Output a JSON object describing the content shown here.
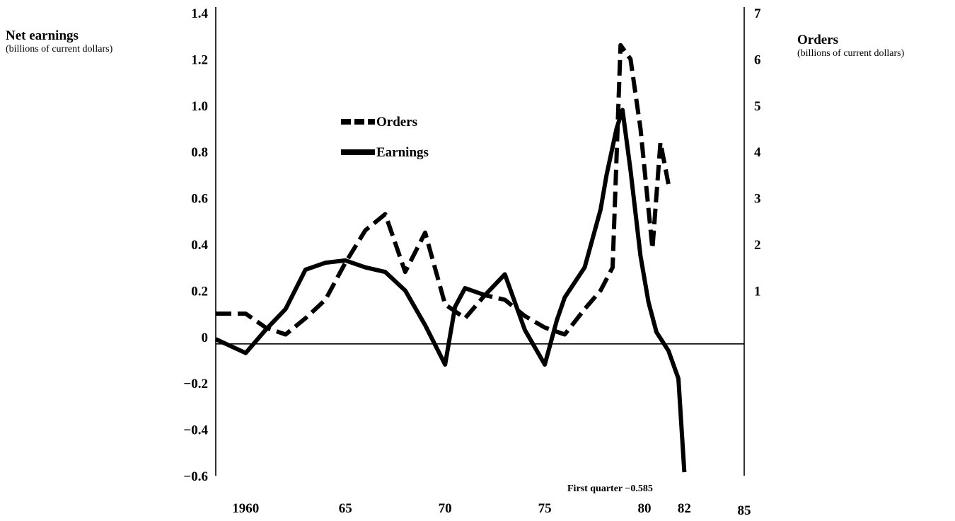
{
  "chart_data": {
    "type": "line",
    "left_axis": {
      "label": "Net earnings",
      "sublabel": "(billions of current dollars)",
      "ylim": [
        -0.6,
        1.4
      ],
      "ticks": [
        "1.4",
        "1.2",
        "1.0",
        "0.8",
        "0.6",
        "0.4",
        "0.2",
        "0",
        "−0.2",
        "−0.4",
        "−0.6"
      ],
      "tick_values": [
        1.4,
        1.2,
        1.0,
        0.8,
        0.6,
        0.4,
        0.2,
        0,
        -0.2,
        -0.4,
        -0.6
      ]
    },
    "right_axis": {
      "label": "Orders",
      "sublabel": "(billions of current dollars)",
      "ylim": [
        -3,
        7
      ],
      "ticks": [
        "7",
        "6",
        "5",
        "4",
        "3",
        "2",
        "1"
      ],
      "tick_values": [
        7,
        6,
        5,
        4,
        3,
        2,
        1
      ]
    },
    "x_axis": {
      "xlim": [
        1958.5,
        1985
      ],
      "ticks": [
        "1960",
        "65",
        "70",
        "75",
        "80",
        "82",
        "85"
      ],
      "tick_values": [
        1960,
        1965,
        1970,
        1975,
        1980,
        1982,
        1985
      ]
    },
    "legend": {
      "placement": "upper-center",
      "orders": "Orders",
      "earnings": "Earnings"
    },
    "series": [
      {
        "name": "Orders",
        "axis": "right",
        "style": "dashed",
        "x": [
          1958.5,
          1960,
          1961,
          1962,
          1963,
          1964,
          1965,
          1966,
          1967,
          1968,
          1969,
          1970,
          1971,
          1972,
          1973,
          1974,
          1975,
          1976,
          1977,
          1977.8,
          1978.4,
          1978.8,
          1979.3,
          1979.8,
          1980.4,
          1980.8,
          1981.2
        ],
        "values": [
          0.5,
          0.5,
          0.2,
          0.05,
          0.4,
          0.8,
          1.6,
          2.3,
          2.65,
          1.4,
          2.25,
          0.7,
          0.4,
          0.9,
          0.8,
          0.45,
          0.2,
          0.05,
          0.6,
          1.0,
          1.5,
          6.3,
          6.0,
          4.5,
          1.9,
          4.2,
          3.3
        ]
      },
      {
        "name": "Earnings",
        "axis": "left",
        "style": "solid",
        "x": [
          1958.5,
          1960,
          1961,
          1962,
          1963,
          1964,
          1965,
          1966,
          1967,
          1968,
          1969,
          1970,
          1970.5,
          1971,
          1972,
          1973,
          1974,
          1975,
          1975.6,
          1976,
          1977,
          1977.8,
          1978.1,
          1978.6,
          1978.9,
          1979.3,
          1979.8,
          1980.2,
          1980.6,
          1981.2,
          1981.7,
          1982
        ],
        "values": [
          -0.01,
          -0.07,
          0.03,
          0.12,
          0.29,
          0.32,
          0.33,
          0.3,
          0.28,
          0.2,
          0.05,
          -0.12,
          0.13,
          0.21,
          0.18,
          0.27,
          0.03,
          -0.12,
          0.07,
          0.17,
          0.3,
          0.55,
          0.7,
          0.9,
          0.98,
          0.72,
          0.35,
          0.15,
          0.02,
          -0.06,
          -0.18,
          -0.585
        ]
      }
    ],
    "annotation": "First quarter −0.585"
  }
}
